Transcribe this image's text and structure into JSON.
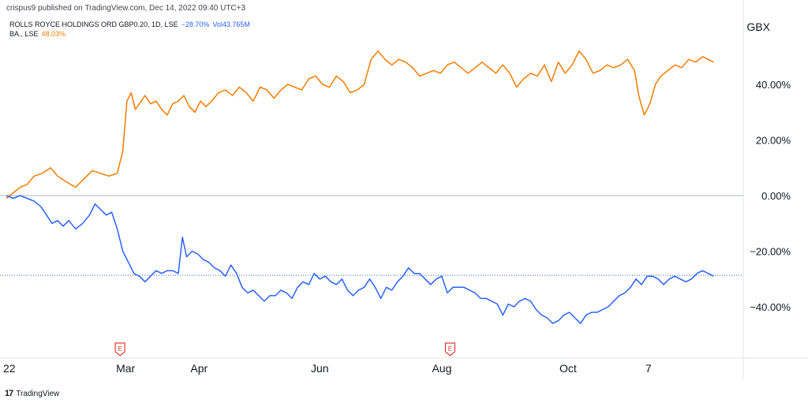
{
  "header": {
    "published": "crispus9 published on TradingView.com, Dec 14, 2022 09:40 UTC+3"
  },
  "legend": {
    "rr_name": "ROLLS ROYCE HOLDINGS ORD GBP0.20, 1D, LSE",
    "rr_change": "−28.70%",
    "rr_vol": "Vol43.765M",
    "ba_name": "BA., LSE",
    "ba_change": "48.03%"
  },
  "unit": "GBX",
  "footer": {
    "brand": "TradingView"
  },
  "colors": {
    "rolls_royce": "#2962ff",
    "ba": "#f57c00",
    "earnings": "#e53935"
  },
  "chart_data": {
    "type": "line",
    "x_range": [
      0,
      52
    ],
    "ylim": [
      -55,
      70
    ],
    "y_ticks": [
      40,
      20,
      0,
      -20,
      -40
    ],
    "y_tick_labels": [
      "40.00%",
      "20.00%",
      "0.00%",
      "−20.00%",
      "−40.00%"
    ],
    "x_ticks": [
      {
        "label": "22",
        "x": 0
      },
      {
        "label": "Mar",
        "x": 8.6
      },
      {
        "label": "Apr",
        "x": 13.9
      },
      {
        "label": "Jun",
        "x": 22.6
      },
      {
        "label": "Aug",
        "x": 31.4
      },
      {
        "label": "Oct",
        "x": 40.5
      },
      {
        "label": "7",
        "x": 46.3
      }
    ],
    "earnings_markers": [
      {
        "x": 8.2,
        "label": "E"
      },
      {
        "x": 32.0,
        "label": "E"
      }
    ],
    "series": [
      {
        "name": "BA., LSE",
        "color": "#f57c00",
        "values": [
          [
            0,
            -1
          ],
          [
            0.5,
            1
          ],
          [
            1,
            3
          ],
          [
            1.5,
            4
          ],
          [
            2,
            7
          ],
          [
            2.6,
            8
          ],
          [
            3.2,
            10
          ],
          [
            3.7,
            7
          ],
          [
            4.3,
            5
          ],
          [
            5,
            3
          ],
          [
            5.6,
            6
          ],
          [
            6.2,
            9
          ],
          [
            6.8,
            8
          ],
          [
            7.4,
            7
          ],
          [
            8,
            8
          ],
          [
            8.4,
            16
          ],
          [
            8.7,
            34
          ],
          [
            9,
            37
          ],
          [
            9.3,
            31
          ],
          [
            9.6,
            33
          ],
          [
            10,
            36
          ],
          [
            10.4,
            33
          ],
          [
            10.8,
            34
          ],
          [
            11.2,
            31
          ],
          [
            11.6,
            29
          ],
          [
            12,
            33
          ],
          [
            12.4,
            34
          ],
          [
            12.8,
            36
          ],
          [
            13.2,
            32
          ],
          [
            13.6,
            30
          ],
          [
            14,
            34
          ],
          [
            14.4,
            32
          ],
          [
            14.8,
            34
          ],
          [
            15.3,
            37
          ],
          [
            15.8,
            38
          ],
          [
            16.3,
            36
          ],
          [
            16.8,
            39
          ],
          [
            17.3,
            37
          ],
          [
            17.8,
            34
          ],
          [
            18.3,
            39
          ],
          [
            18.8,
            38
          ],
          [
            19.3,
            35
          ],
          [
            19.8,
            38
          ],
          [
            20.3,
            40
          ],
          [
            20.8,
            39
          ],
          [
            21.3,
            38
          ],
          [
            21.8,
            42
          ],
          [
            22.3,
            43
          ],
          [
            22.8,
            40
          ],
          [
            23.3,
            39
          ],
          [
            23.8,
            43
          ],
          [
            24.3,
            41
          ],
          [
            24.8,
            37
          ],
          [
            25.3,
            38
          ],
          [
            25.8,
            40
          ],
          [
            26.3,
            49
          ],
          [
            26.8,
            52
          ],
          [
            27.3,
            49
          ],
          [
            27.8,
            47
          ],
          [
            28.3,
            49
          ],
          [
            28.8,
            48
          ],
          [
            29.3,
            46
          ],
          [
            29.8,
            43
          ],
          [
            30.3,
            44
          ],
          [
            30.8,
            45
          ],
          [
            31.3,
            44
          ],
          [
            31.8,
            47
          ],
          [
            32.3,
            48
          ],
          [
            32.8,
            46
          ],
          [
            33.3,
            44
          ],
          [
            33.8,
            46
          ],
          [
            34.3,
            48
          ],
          [
            34.8,
            46
          ],
          [
            35.3,
            44
          ],
          [
            35.8,
            47
          ],
          [
            36.3,
            44
          ],
          [
            36.8,
            39
          ],
          [
            37.3,
            42
          ],
          [
            37.8,
            44
          ],
          [
            38.3,
            43
          ],
          [
            38.8,
            47
          ],
          [
            39.3,
            41
          ],
          [
            39.8,
            48
          ],
          [
            40.3,
            44
          ],
          [
            40.8,
            47
          ],
          [
            41.3,
            52
          ],
          [
            41.8,
            49
          ],
          [
            42.3,
            44
          ],
          [
            42.8,
            45
          ],
          [
            43.3,
            47
          ],
          [
            43.8,
            46
          ],
          [
            44.3,
            47
          ],
          [
            44.8,
            49
          ],
          [
            45.3,
            45
          ],
          [
            45.6,
            36
          ],
          [
            46,
            29
          ],
          [
            46.4,
            33
          ],
          [
            46.8,
            40
          ],
          [
            47.2,
            43
          ],
          [
            47.7,
            45
          ],
          [
            48.2,
            47
          ],
          [
            48.7,
            46
          ],
          [
            49.2,
            49
          ],
          [
            49.7,
            48
          ],
          [
            50.2,
            50
          ],
          [
            50.6,
            49
          ],
          [
            51,
            48
          ]
        ]
      },
      {
        "name": "ROLLS ROYCE HOLDINGS ORD GBP0.20",
        "color": "#2962ff",
        "values": [
          [
            0,
            0
          ],
          [
            0.5,
            -1
          ],
          [
            1,
            0
          ],
          [
            1.5,
            -1
          ],
          [
            2,
            -2
          ],
          [
            2.5,
            -4
          ],
          [
            2.9,
            -7
          ],
          [
            3.3,
            -10
          ],
          [
            3.7,
            -9
          ],
          [
            4.1,
            -11
          ],
          [
            4.5,
            -9
          ],
          [
            5,
            -12
          ],
          [
            5.5,
            -10
          ],
          [
            6,
            -7
          ],
          [
            6.4,
            -3
          ],
          [
            6.8,
            -5
          ],
          [
            7.2,
            -7
          ],
          [
            7.6,
            -6
          ],
          [
            8,
            -12
          ],
          [
            8.4,
            -20
          ],
          [
            8.8,
            -24
          ],
          [
            9.2,
            -28
          ],
          [
            9.6,
            -29
          ],
          [
            10,
            -31
          ],
          [
            10.4,
            -29
          ],
          [
            10.8,
            -27
          ],
          [
            11.2,
            -28
          ],
          [
            11.6,
            -27
          ],
          [
            12,
            -27
          ],
          [
            12.4,
            -28
          ],
          [
            12.7,
            -15
          ],
          [
            13,
            -22
          ],
          [
            13.4,
            -20
          ],
          [
            13.8,
            -21
          ],
          [
            14.2,
            -23
          ],
          [
            14.6,
            -24
          ],
          [
            15,
            -26
          ],
          [
            15.4,
            -27
          ],
          [
            15.8,
            -29
          ],
          [
            16.2,
            -25
          ],
          [
            16.6,
            -28
          ],
          [
            17,
            -33
          ],
          [
            17.4,
            -35
          ],
          [
            17.8,
            -34
          ],
          [
            18.2,
            -36
          ],
          [
            18.6,
            -38
          ],
          [
            19,
            -36
          ],
          [
            19.4,
            -36
          ],
          [
            19.8,
            -34
          ],
          [
            20.2,
            -35
          ],
          [
            20.6,
            -37
          ],
          [
            21,
            -33
          ],
          [
            21.4,
            -31
          ],
          [
            21.8,
            -32
          ],
          [
            22.2,
            -28
          ],
          [
            22.6,
            -30
          ],
          [
            23,
            -29
          ],
          [
            23.4,
            -31
          ],
          [
            23.8,
            -32
          ],
          [
            24.2,
            -30
          ],
          [
            24.6,
            -34
          ],
          [
            25,
            -36
          ],
          [
            25.4,
            -34
          ],
          [
            25.8,
            -33
          ],
          [
            26.2,
            -30
          ],
          [
            26.6,
            -33
          ],
          [
            27,
            -37
          ],
          [
            27.4,
            -33
          ],
          [
            27.8,
            -34
          ],
          [
            28.2,
            -31
          ],
          [
            28.6,
            -29
          ],
          [
            29,
            -26
          ],
          [
            29.4,
            -28
          ],
          [
            29.8,
            -28
          ],
          [
            30.2,
            -30
          ],
          [
            30.6,
            -32
          ],
          [
            31,
            -30
          ],
          [
            31.4,
            -29
          ],
          [
            31.8,
            -35
          ],
          [
            32.2,
            -33
          ],
          [
            32.6,
            -33
          ],
          [
            33,
            -33
          ],
          [
            33.4,
            -34
          ],
          [
            33.8,
            -35
          ],
          [
            34.2,
            -37
          ],
          [
            34.6,
            -37
          ],
          [
            35,
            -38
          ],
          [
            35.4,
            -39
          ],
          [
            35.8,
            -43
          ],
          [
            36.2,
            -39
          ],
          [
            36.6,
            -40
          ],
          [
            37,
            -38
          ],
          [
            37.4,
            -37
          ],
          [
            37.8,
            -38
          ],
          [
            38.2,
            -41
          ],
          [
            38.6,
            -43
          ],
          [
            39,
            -44
          ],
          [
            39.4,
            -46
          ],
          [
            39.8,
            -45
          ],
          [
            40.2,
            -43
          ],
          [
            40.6,
            -42
          ],
          [
            41,
            -44
          ],
          [
            41.4,
            -46
          ],
          [
            41.8,
            -43
          ],
          [
            42.2,
            -42
          ],
          [
            42.6,
            -42
          ],
          [
            43,
            -41
          ],
          [
            43.4,
            -40
          ],
          [
            43.8,
            -38
          ],
          [
            44.2,
            -36
          ],
          [
            44.6,
            -35
          ],
          [
            45,
            -33
          ],
          [
            45.4,
            -30
          ],
          [
            45.8,
            -32
          ],
          [
            46.2,
            -29
          ],
          [
            46.6,
            -29
          ],
          [
            47,
            -30
          ],
          [
            47.4,
            -32
          ],
          [
            47.8,
            -30
          ],
          [
            48.2,
            -29
          ],
          [
            48.6,
            -30
          ],
          [
            49,
            -31
          ],
          [
            49.4,
            -30
          ],
          [
            49.8,
            -28
          ],
          [
            50.2,
            -27
          ],
          [
            50.6,
            -28
          ],
          [
            51,
            -29
          ]
        ]
      }
    ],
    "reference_lines": [
      {
        "y": 0,
        "style": "solid",
        "color": "#b2b5be"
      },
      {
        "y": -28.7,
        "style": "dotted",
        "color": "#2962ff"
      }
    ]
  }
}
